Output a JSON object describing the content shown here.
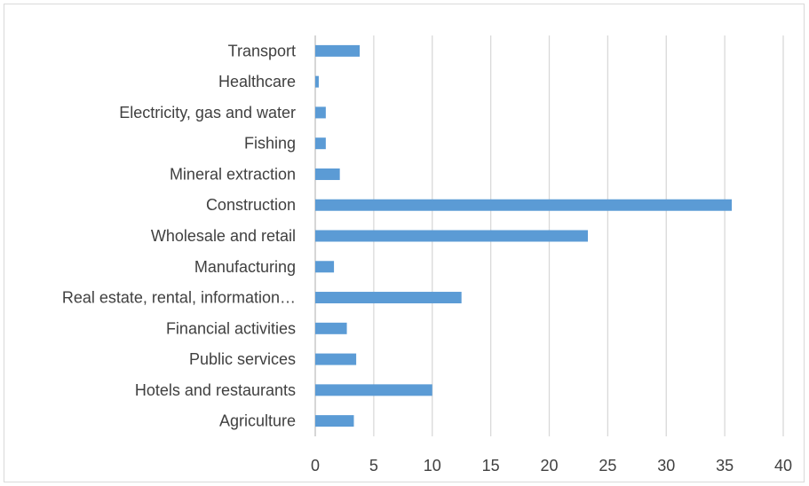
{
  "chart_data": {
    "type": "bar",
    "orientation": "horizontal",
    "categories": [
      "Transport",
      "Healthcare",
      "Electricity, gas and water",
      "Fishing",
      "Mineral extraction",
      "Construction",
      "Wholesale and retail",
      "Manufacturing",
      "Real estate, rental, information…",
      "Financial activities",
      "Public services",
      "Hotels and restaurants",
      "Agriculture"
    ],
    "values": [
      3.8,
      0.3,
      0.9,
      0.9,
      2.1,
      35.6,
      23.3,
      1.6,
      12.5,
      2.7,
      3.5,
      10.0,
      3.3
    ],
    "xlim": [
      0,
      40
    ],
    "xticks": [
      0,
      5,
      10,
      15,
      20,
      25,
      30,
      35,
      40
    ],
    "grid": "vertical",
    "bar_color": "#5b9bd5",
    "title": "",
    "xlabel": "",
    "ylabel": ""
  }
}
